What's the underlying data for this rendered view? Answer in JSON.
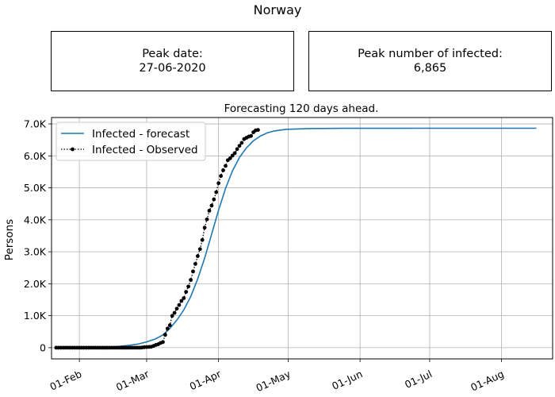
{
  "page": {
    "title": "Norway",
    "peak_date_label": "Peak date:",
    "peak_date_value": "27-06-2020",
    "peak_infected_label": "Peak number of infected:",
    "peak_infected_value": "6,865"
  },
  "chart_data": {
    "type": "line",
    "title": "Forecasting 120 days ahead.",
    "xlabel": "",
    "ylabel": "Persons",
    "x_type": "date",
    "xlim": [
      "2020-01-20",
      "2020-08-23"
    ],
    "ylim": [
      -350,
      7200
    ],
    "y_ticks": [
      0,
      1000,
      2000,
      3000,
      4000,
      5000,
      6000,
      7000
    ],
    "y_tick_labels": [
      "0",
      "1.0K",
      "2.0K",
      "3.0K",
      "4.0K",
      "5.0K",
      "6.0K",
      "7.0K"
    ],
    "x_ticks": [
      "2020-02-01",
      "2020-03-01",
      "2020-04-01",
      "2020-05-01",
      "2020-06-01",
      "2020-07-01",
      "2020-08-01"
    ],
    "x_tick_labels": [
      "01-Feb",
      "01-Mar",
      "01-Apr",
      "01-May",
      "01-Jun",
      "01-Jul",
      "01-Aug"
    ],
    "grid": true,
    "legend_position": "top-left",
    "series": [
      {
        "name": "Infected - forecast",
        "style": "solid",
        "color": "#1f77b4",
        "x": [
          "2020-01-22",
          "2020-02-01",
          "2020-02-10",
          "2020-02-17",
          "2020-02-22",
          "2020-02-26",
          "2020-03-01",
          "2020-03-05",
          "2020-03-08",
          "2020-03-11",
          "2020-03-14",
          "2020-03-17",
          "2020-03-20",
          "2020-03-23",
          "2020-03-26",
          "2020-03-29",
          "2020-04-01",
          "2020-04-04",
          "2020-04-07",
          "2020-04-10",
          "2020-04-13",
          "2020-04-16",
          "2020-04-19",
          "2020-04-22",
          "2020-04-25",
          "2020-04-30",
          "2020-05-10",
          "2020-05-25",
          "2020-06-27",
          "2020-07-15",
          "2020-08-16"
        ],
        "y": [
          0,
          5,
          15,
          35,
          70,
          110,
          180,
          280,
          400,
          600,
          860,
          1180,
          1600,
          2150,
          2800,
          3550,
          4300,
          4980,
          5530,
          5950,
          6250,
          6470,
          6620,
          6720,
          6780,
          6830,
          6855,
          6862,
          6865,
          6865,
          6865
        ]
      },
      {
        "name": "Infected - Observed",
        "style": "dotted",
        "marker": "circle",
        "color": "#000000",
        "x": [
          "2020-01-22",
          "2020-01-23",
          "2020-01-24",
          "2020-01-25",
          "2020-01-26",
          "2020-01-27",
          "2020-01-28",
          "2020-01-29",
          "2020-01-30",
          "2020-01-31",
          "2020-02-01",
          "2020-02-02",
          "2020-02-03",
          "2020-02-04",
          "2020-02-05",
          "2020-02-06",
          "2020-02-07",
          "2020-02-08",
          "2020-02-09",
          "2020-02-10",
          "2020-02-11",
          "2020-02-12",
          "2020-02-13",
          "2020-02-14",
          "2020-02-15",
          "2020-02-16",
          "2020-02-17",
          "2020-02-18",
          "2020-02-19",
          "2020-02-20",
          "2020-02-21",
          "2020-02-22",
          "2020-02-23",
          "2020-02-24",
          "2020-02-25",
          "2020-02-26",
          "2020-02-27",
          "2020-02-28",
          "2020-02-29",
          "2020-03-01",
          "2020-03-02",
          "2020-03-03",
          "2020-03-04",
          "2020-03-05",
          "2020-03-06",
          "2020-03-07",
          "2020-03-08",
          "2020-03-09",
          "2020-03-10",
          "2020-03-11",
          "2020-03-12",
          "2020-03-13",
          "2020-03-14",
          "2020-03-15",
          "2020-03-16",
          "2020-03-17",
          "2020-03-18",
          "2020-03-19",
          "2020-03-20",
          "2020-03-21",
          "2020-03-22",
          "2020-03-23",
          "2020-03-24",
          "2020-03-25",
          "2020-03-26",
          "2020-03-27",
          "2020-03-28",
          "2020-03-29",
          "2020-03-30",
          "2020-03-31",
          "2020-04-01",
          "2020-04-02",
          "2020-04-03",
          "2020-04-04",
          "2020-04-05",
          "2020-04-06",
          "2020-04-07",
          "2020-04-08",
          "2020-04-09",
          "2020-04-10",
          "2020-04-11",
          "2020-04-12",
          "2020-04-13",
          "2020-04-14",
          "2020-04-15",
          "2020-04-16",
          "2020-04-17",
          "2020-04-18"
        ],
        "y": [
          0,
          0,
          0,
          0,
          0,
          0,
          0,
          0,
          0,
          0,
          0,
          0,
          0,
          0,
          0,
          0,
          0,
          0,
          0,
          0,
          0,
          0,
          0,
          0,
          0,
          0,
          0,
          0,
          0,
          0,
          0,
          0,
          0,
          0,
          0,
          1,
          1,
          6,
          15,
          19,
          25,
          32,
          56,
          87,
          108,
          147,
          176,
          400,
          598,
          702,
          996,
          1090,
          1221,
          1333,
          1463,
          1550,
          1746,
          1914,
          2118,
          2385,
          2621,
          2866,
          3084,
          3369,
          3755,
          4015,
          4284,
          4445,
          4641,
          4863,
          5147,
          5370,
          5550,
          5687,
          5865,
          5925,
          6010,
          6086,
          6211,
          6314,
          6409,
          6525,
          6566,
          6603,
          6623,
          6740,
          6798,
          6810
        ]
      }
    ]
  }
}
